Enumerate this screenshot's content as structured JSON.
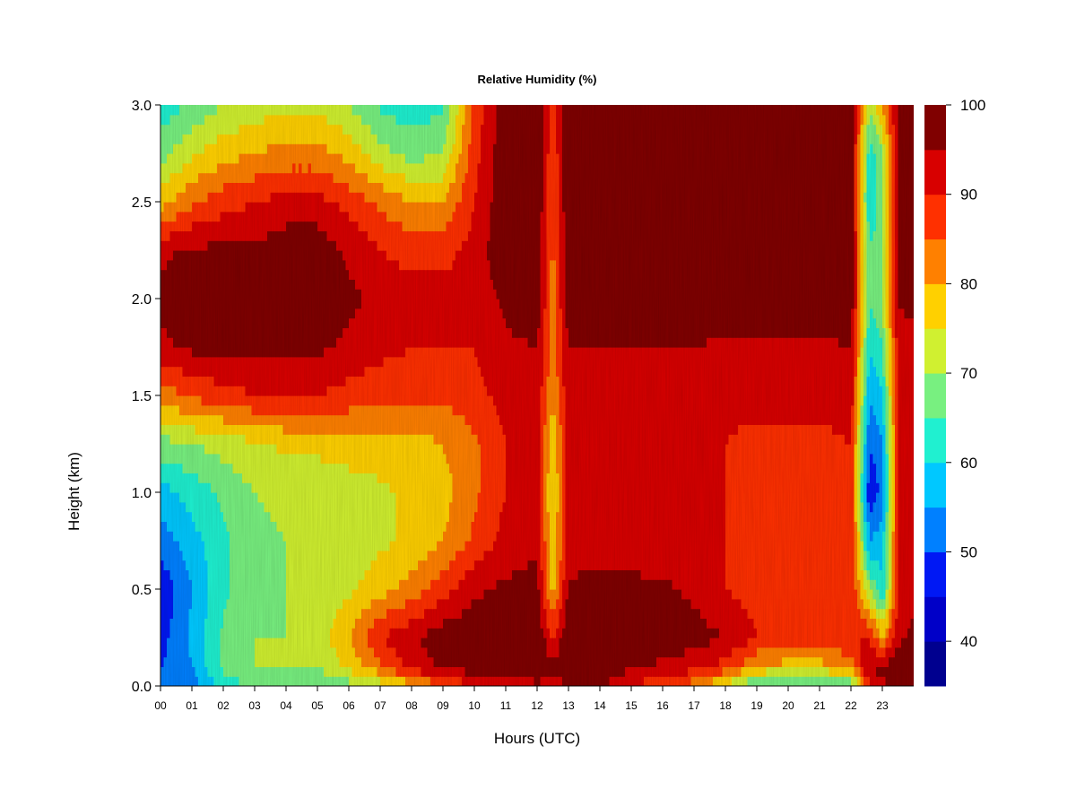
{
  "chart_data": {
    "type": "heatmap",
    "title": "Relative Humidity (%)",
    "xlabel": "Hours (UTC)",
    "ylabel": "Height (km)",
    "xlim": [
      0,
      24
    ],
    "ylim": [
      0.0,
      3.0
    ],
    "x_ticks": [
      "00",
      "01",
      "02",
      "03",
      "04",
      "05",
      "06",
      "07",
      "08",
      "09",
      "10",
      "11",
      "12",
      "13",
      "14",
      "15",
      "16",
      "17",
      "18",
      "19",
      "20",
      "21",
      "22",
      "23"
    ],
    "y_ticks": [
      "0.0",
      "0.5",
      "1.0",
      "1.5",
      "2.0",
      "2.5",
      "3.0"
    ],
    "y_tick_values": [
      0.0,
      0.5,
      1.0,
      1.5,
      2.0,
      2.5,
      3.0
    ],
    "colorbar": {
      "levels": [
        35,
        40,
        45,
        50,
        55,
        60,
        65,
        70,
        75,
        80,
        85,
        90,
        95,
        100
      ],
      "colors": [
        "#00008f",
        "#0000c8",
        "#0018f4",
        "#0080ff",
        "#00c8ff",
        "#20f0d0",
        "#78f080",
        "#d0f030",
        "#ffd000",
        "#ff8000",
        "#ff3000",
        "#d80000",
        "#800000"
      ],
      "tick_labels": [
        "40",
        "50",
        "60",
        "70",
        "80",
        "90",
        "100"
      ],
      "tick_values": [
        40,
        50,
        60,
        70,
        80,
        90,
        100
      ]
    },
    "hours": [
      0,
      1,
      2,
      3,
      4,
      5,
      6,
      7,
      8,
      9,
      10,
      11,
      12,
      12.5,
      13,
      13.5,
      14,
      15,
      16,
      17,
      18,
      19,
      20,
      21,
      22,
      22.6,
      23,
      23.5,
      24
    ],
    "heights_km": [
      0.0,
      0.1,
      0.25,
      0.5,
      0.75,
      1.0,
      1.25,
      1.5,
      1.75,
      2.0,
      2.25,
      2.5,
      2.75,
      3.0
    ],
    "rh_grid_rows_by_height": [
      [
        50,
        52,
        62,
        66,
        66,
        66,
        68,
        72,
        78,
        84,
        90,
        92,
        94,
        92,
        96,
        97,
        96,
        90,
        86,
        82,
        74,
        62,
        62,
        62,
        64,
        90,
        94,
        96,
        96
      ],
      [
        50,
        55,
        66,
        70,
        70,
        70,
        76,
        84,
        92,
        96,
        98,
        98,
        99,
        96,
        99,
        99,
        98,
        96,
        94,
        92,
        88,
        80,
        78,
        78,
        82,
        96,
        96,
        98,
        98
      ],
      [
        48,
        56,
        66,
        70,
        70,
        72,
        80,
        90,
        94,
        98,
        99,
        99,
        99,
        90,
        99,
        99,
        99,
        99,
        98,
        97,
        95,
        90,
        88,
        88,
        90,
        90,
        80,
        94,
        96
      ],
      [
        46,
        55,
        64,
        68,
        70,
        72,
        74,
        78,
        82,
        88,
        94,
        96,
        97,
        78,
        96,
        96,
        96,
        96,
        96,
        94,
        90,
        88,
        88,
        88,
        90,
        70,
        60,
        90,
        94
      ],
      [
        52,
        58,
        64,
        68,
        70,
        70,
        72,
        74,
        76,
        80,
        86,
        92,
        94,
        76,
        92,
        93,
        93,
        93,
        92,
        92,
        90,
        88,
        88,
        88,
        90,
        55,
        58,
        90,
        94
      ],
      [
        58,
        62,
        66,
        70,
        72,
        72,
        72,
        74,
        76,
        78,
        84,
        90,
        92,
        74,
        92,
        92,
        92,
        92,
        92,
        92,
        90,
        88,
        88,
        88,
        90,
        45,
        52,
        90,
        94
      ],
      [
        68,
        70,
        72,
        74,
        76,
        76,
        78,
        78,
        78,
        80,
        84,
        90,
        92,
        76,
        92,
        92,
        92,
        92,
        92,
        92,
        90,
        88,
        88,
        88,
        90,
        50,
        55,
        90,
        94
      ],
      [
        82,
        86,
        88,
        90,
        90,
        90,
        88,
        86,
        86,
        86,
        88,
        92,
        94,
        80,
        94,
        94,
        94,
        94,
        94,
        94,
        92,
        92,
        92,
        92,
        94,
        55,
        60,
        90,
        94
      ],
      [
        94,
        96,
        96,
        96,
        96,
        96,
        94,
        92,
        90,
        90,
        90,
        94,
        95,
        82,
        95,
        95,
        95,
        95,
        95,
        95,
        94,
        94,
        94,
        94,
        95,
        60,
        65,
        92,
        94
      ],
      [
        96,
        98,
        98,
        98,
        98,
        98,
        96,
        94,
        92,
        92,
        92,
        96,
        99,
        82,
        99,
        99,
        99,
        99,
        99,
        99,
        99,
        99,
        99,
        99,
        99,
        65,
        70,
        96,
        96
      ],
      [
        94,
        96,
        96,
        96,
        98,
        98,
        94,
        90,
        88,
        88,
        92,
        99,
        99,
        84,
        99,
        99,
        99,
        99,
        99,
        99,
        99,
        99,
        99,
        99,
        99,
        65,
        70,
        96,
        98
      ],
      [
        78,
        84,
        88,
        90,
        92,
        92,
        88,
        84,
        80,
        80,
        90,
        99,
        99,
        86,
        99,
        99,
        99,
        99,
        99,
        99,
        99,
        99,
        99,
        99,
        99,
        60,
        68,
        96,
        98
      ],
      [
        68,
        74,
        78,
        80,
        82,
        82,
        78,
        72,
        68,
        70,
        88,
        99,
        99,
        86,
        99,
        99,
        99,
        99,
        99,
        99,
        99,
        99,
        99,
        99,
        99,
        62,
        70,
        96,
        98
      ],
      [
        62,
        66,
        70,
        72,
        74,
        74,
        70,
        64,
        62,
        64,
        86,
        99,
        99,
        88,
        99,
        99,
        99,
        99,
        99,
        99,
        99,
        99,
        99,
        99,
        99,
        70,
        80,
        96,
        98
      ]
    ]
  }
}
